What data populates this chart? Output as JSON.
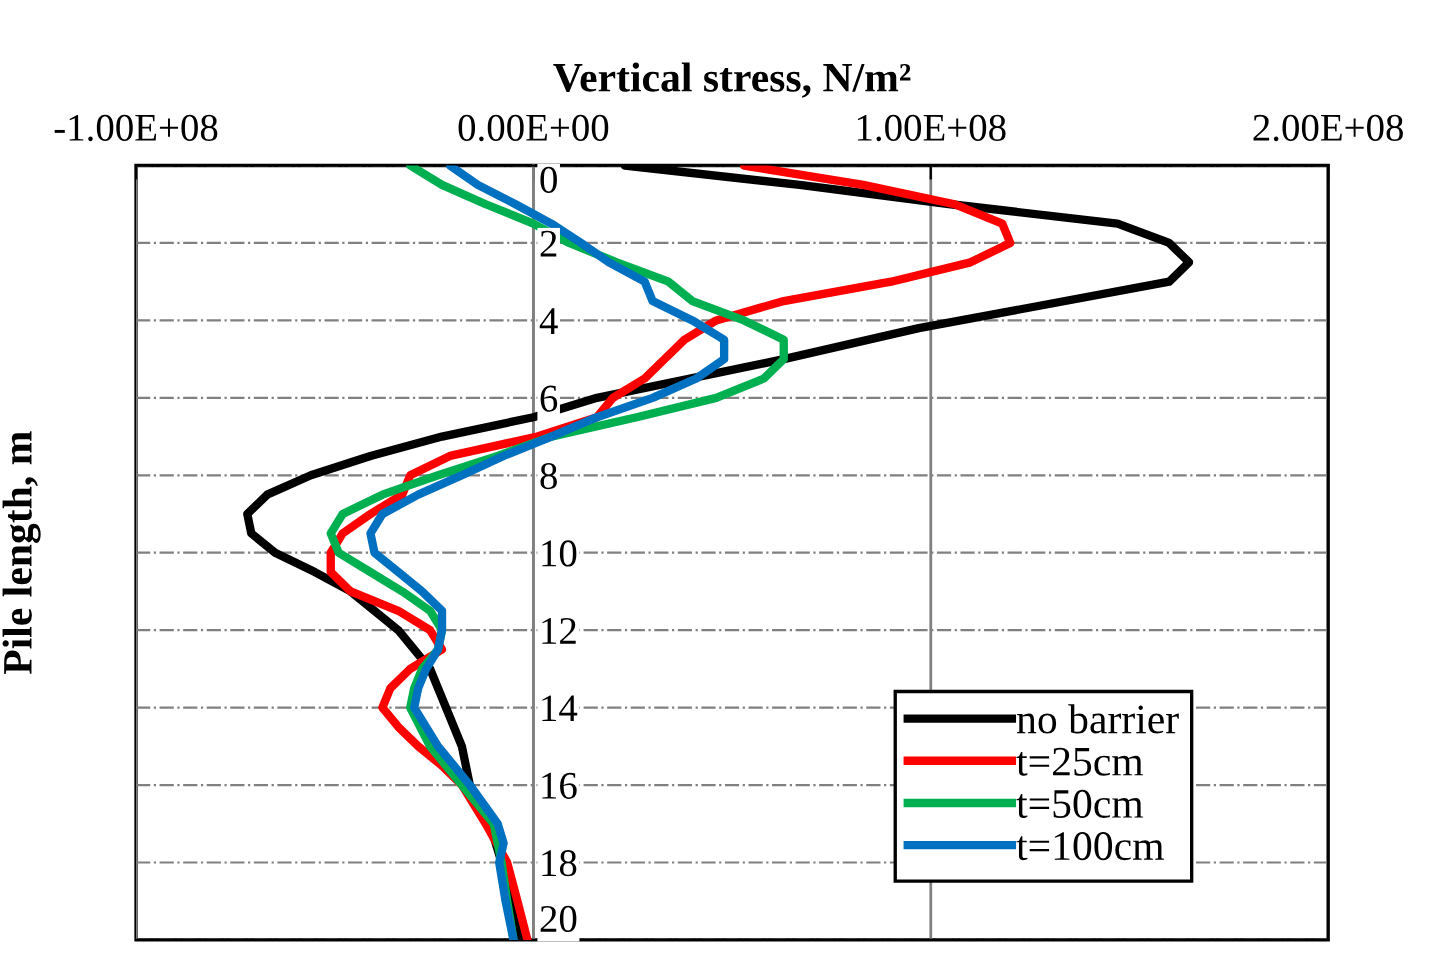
{
  "chart_data": {
    "type": "line",
    "xlabel": "Vertical stress, N/m²",
    "ylabel": "Pile length, m",
    "xlim": [
      -100000000,
      200000000
    ],
    "xticks": [
      {
        "value": -100000000,
        "label": "-1.00E+08"
      },
      {
        "value": 0,
        "label": "0.00E+00"
      },
      {
        "value": 100000000,
        "label": "1.00E+08"
      },
      {
        "value": 200000000,
        "label": "2.00E+08"
      }
    ],
    "ylim": [
      20,
      0
    ],
    "yticks": [
      0,
      2,
      4,
      6,
      8,
      10,
      12,
      14,
      16,
      18,
      20
    ],
    "grid": true,
    "legend": "bottom right",
    "marker": "none",
    "line_style": "solid",
    "series": [
      {
        "name": "no barrier",
        "color": "#000000",
        "x": [
          23000000,
          67000000,
          105000000,
          147000000,
          160000000,
          165000000,
          160000000,
          97000000,
          63000000,
          16000000,
          0,
          -23000000,
          -41000000,
          -56000000,
          -67000000,
          -72000000,
          -71000000,
          -65000000,
          -55000000,
          -46000000,
          -34000000,
          -26000000,
          -22000000,
          -18000000,
          -16000000,
          -11000000,
          -8000000,
          -5600000,
          -3000000
        ],
        "values": [
          0,
          0.5,
          1,
          1.5,
          2,
          2.5,
          3,
          4.2,
          5,
          6,
          6.5,
          7,
          7.5,
          8,
          8.5,
          9,
          9.5,
          10,
          10.5,
          11,
          12,
          13,
          14,
          15,
          16,
          17,
          18,
          19,
          20
        ]
      },
      {
        "name": "t=25cm",
        "color": "#ff0000",
        "x": [
          53000000,
          83000000,
          106000000,
          118000000,
          120000000,
          110000000,
          90000000,
          63000000,
          46000000,
          38000000,
          33000000,
          28000000,
          20000000,
          16000000,
          1000000,
          -21000000,
          -31000000,
          -33000000,
          -41000000,
          -48000000,
          -51000000,
          -51000000,
          -46000000,
          -34000000,
          -26000000,
          -23000000,
          -31000000,
          -36000000,
          -38000000,
          -34000000,
          -29000000,
          -23000000,
          -18000000,
          -12000000,
          -6600000,
          -4000000,
          -1500000
        ],
        "values": [
          0,
          0.5,
          1,
          1.5,
          2,
          2.5,
          3,
          3.5,
          4,
          4.5,
          5,
          5.5,
          6,
          6.5,
          7,
          7.5,
          8,
          8.5,
          9,
          9.5,
          10,
          10.5,
          11,
          11.5,
          12,
          12.5,
          13,
          13.5,
          14,
          14.5,
          15,
          15.5,
          16,
          17,
          18,
          19,
          20
        ]
      },
      {
        "name": "t=50cm",
        "color": "#00b050",
        "x": [
          -31000000,
          -23000000,
          -12000000,
          0,
          9000000,
          21000000,
          34000000,
          40000000,
          53000000,
          63000000,
          63000000,
          58000000,
          46000000,
          26000000,
          4500000,
          -9000000,
          -24000000,
          -38000000,
          -48000000,
          -51000000,
          -49000000,
          -41000000,
          -33000000,
          -26000000,
          -23000000,
          -24000000,
          -28000000,
          -30000000,
          -31000000,
          -26000000,
          -18000000,
          -10000000,
          -8000000,
          -6600000,
          -5000000
        ],
        "values": [
          0,
          0.5,
          1,
          1.5,
          2,
          2.5,
          3,
          3.5,
          4,
          4.5,
          5,
          5.5,
          6,
          6.5,
          7,
          7.5,
          8,
          8.5,
          9,
          9.5,
          10,
          10.5,
          11,
          11.5,
          12,
          12.5,
          13,
          13.5,
          14,
          15,
          16,
          17,
          18,
          19,
          20
        ]
      },
      {
        "name": "t=100cm",
        "color": "#0070c0",
        "x": [
          -21000000,
          -14000000,
          -4500000,
          4500000,
          12000000,
          19000000,
          28000000,
          30000000,
          40000000,
          48000000,
          48000000,
          41000000,
          30000000,
          16000000,
          4500000,
          -7500000,
          -18000000,
          -29000000,
          -38000000,
          -41000000,
          -40000000,
          -34000000,
          -28000000,
          -23000000,
          -23000000,
          -24000000,
          -27000000,
          -29000000,
          -30000000,
          -24000000,
          -16000000,
          -9000000,
          -7500000,
          -8600000,
          -7000000,
          -5000000
        ],
        "values": [
          0,
          0.5,
          1,
          1.5,
          2,
          2.5,
          3,
          3.5,
          4,
          4.5,
          5,
          5.5,
          6,
          6.5,
          7,
          7.5,
          8,
          8.5,
          9,
          9.5,
          10,
          10.5,
          11,
          11.5,
          12,
          12.5,
          13,
          13.5,
          14,
          15,
          16,
          17,
          17.5,
          18,
          19,
          20
        ]
      }
    ]
  }
}
